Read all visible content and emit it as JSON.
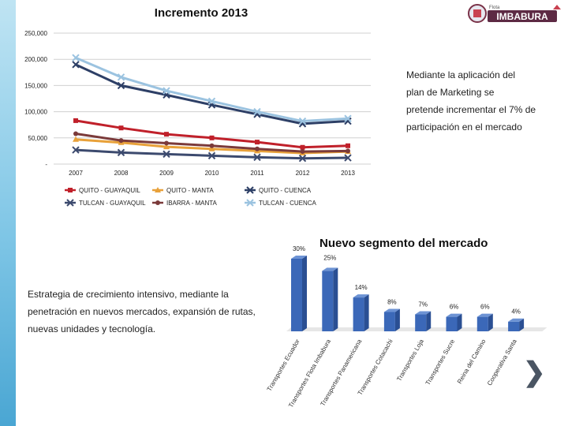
{
  "chart_data": [
    {
      "type": "line",
      "title": "Incremento 2013",
      "x": [
        "2007",
        "2008",
        "2009",
        "2010",
        "2011",
        "2012",
        "2013"
      ],
      "y_ticks": [
        "250,000",
        "200,000",
        "150,000",
        "100,000",
        "50,000",
        "-"
      ],
      "ylim": [
        0,
        250000
      ],
      "grid": true,
      "series": [
        {
          "name": "QUITO - GUAYAQUIL",
          "color": "#c0202a",
          "marker": "square",
          "values": [
            83000,
            69000,
            57000,
            50000,
            42000,
            32000,
            35000
          ]
        },
        {
          "name": "QUITO - MANTA",
          "color": "#e8a13a",
          "marker": "triangle",
          "values": [
            47000,
            41000,
            33000,
            29000,
            25000,
            21000,
            24000
          ]
        },
        {
          "name": "QUITO - CUENCA",
          "color": "#2d3f66",
          "marker": "x",
          "values": [
            190000,
            150000,
            132000,
            113000,
            95000,
            77000,
            82000
          ]
        },
        {
          "name": "TULCAN - GUAYAQUIL",
          "color": "#3c4a6e",
          "marker": "x",
          "values": [
            27000,
            22000,
            19000,
            16000,
            13000,
            11000,
            12000
          ]
        },
        {
          "name": "IBARRA - MANTA",
          "color": "#7b3a3a",
          "marker": "circle",
          "values": [
            58000,
            45000,
            40000,
            35000,
            29000,
            24000,
            25000
          ]
        },
        {
          "name": "TULCAN - CUENCA",
          "color": "#9bc3e0",
          "marker": "x",
          "values": [
            203000,
            166000,
            140000,
            120000,
            100000,
            82000,
            87000
          ]
        }
      ]
    },
    {
      "type": "bar",
      "title": "Nuevo segmento del mercado",
      "categories": [
        "Transportes Ecuador",
        "Transportes Flota Imbabura",
        "Transportes Panamericana",
        "Transportes Cotacachi",
        "Transportes Loja",
        "Transportes Sucre",
        "Reina del Camino",
        "Cooperativa Santa"
      ],
      "values": [
        30,
        25,
        14,
        8,
        7,
        6,
        6,
        4
      ],
      "value_labels": [
        "30%",
        "25%",
        "14%",
        "8%",
        "7%",
        "6%",
        "6%",
        "4%"
      ],
      "color": "#3b68b8"
    }
  ],
  "logo": {
    "top_text": "Flota",
    "brand": "IMBABURA"
  },
  "annotation_top": [
    "Mediante la aplicación del",
    "plan de Marketing se",
    "pretende incrementar el 7% de",
    "participación en el mercado"
  ],
  "annotation_bottom": [
    "Estrategia de crecimiento intensivo, mediante la",
    "penetración en nuevos mercados, expansión de rutas,",
    "nuevas unidades y tecnología."
  ],
  "nav": {
    "next_label": "❯"
  }
}
